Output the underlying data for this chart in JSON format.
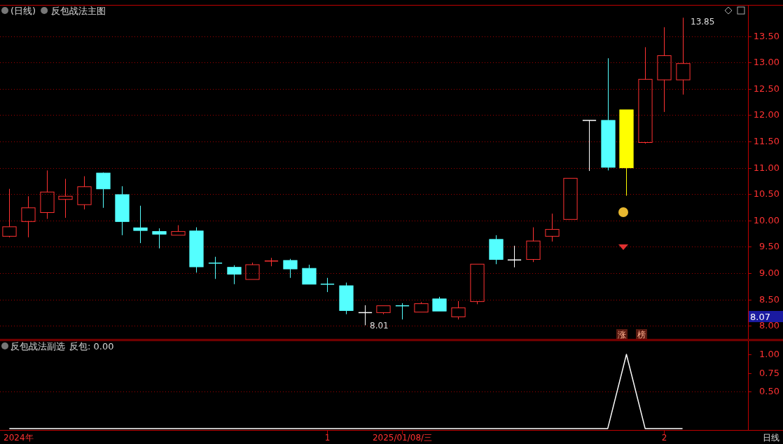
{
  "chart_data": [
    {
      "type": "candlestick",
      "title": "(日线)",
      "subtitle": "反包战法主图",
      "color": "#ff3232",
      "categories": [
        null,
        null,
        null,
        null,
        null,
        null,
        null,
        null,
        null,
        null,
        null,
        null,
        null,
        null,
        null,
        null,
        null,
        null,
        null,
        null,
        null,
        null,
        null,
        null,
        null,
        null,
        null,
        null,
        null,
        null,
        null,
        null,
        null,
        null,
        null,
        null,
        null,
        null,
        null,
        null
      ],
      "ohlc": [
        [
          9.7,
          10.6,
          9.68,
          9.88
        ],
        [
          9.98,
          10.46,
          9.68,
          10.24
        ],
        [
          10.15,
          10.95,
          10.03,
          10.54
        ],
        [
          10.4,
          10.79,
          10.05,
          10.46
        ],
        [
          10.3,
          10.84,
          10.21,
          10.64
        ],
        [
          10.9,
          10.91,
          10.24,
          10.6
        ],
        [
          10.49,
          10.65,
          9.72,
          9.98
        ],
        [
          9.86,
          10.28,
          9.57,
          9.81
        ],
        [
          9.79,
          9.85,
          9.47,
          9.74
        ],
        [
          9.72,
          9.91,
          9.72,
          9.79
        ],
        [
          9.8,
          9.87,
          9.01,
          9.12
        ],
        [
          9.19,
          9.31,
          8.89,
          9.18
        ],
        [
          9.11,
          9.15,
          8.79,
          8.98
        ],
        [
          8.88,
          9.2,
          8.88,
          9.16
        ],
        [
          9.22,
          9.29,
          9.13,
          9.23
        ],
        [
          9.24,
          9.27,
          8.91,
          9.08
        ],
        [
          9.09,
          9.16,
          8.79,
          8.79
        ],
        [
          8.79,
          8.91,
          8.64,
          8.78
        ],
        [
          8.76,
          8.82,
          8.22,
          8.29
        ],
        [
          8.25,
          8.39,
          8.01,
          8.25
        ],
        [
          8.25,
          8.38,
          8.22,
          8.38
        ],
        [
          8.38,
          8.43,
          8.12,
          8.37
        ],
        [
          8.26,
          8.45,
          8.26,
          8.42
        ],
        [
          8.51,
          8.55,
          8.28,
          8.28
        ],
        [
          8.17,
          8.47,
          8.12,
          8.34
        ],
        [
          8.46,
          9.17,
          8.41,
          9.17
        ],
        [
          9.64,
          9.72,
          9.17,
          9.26
        ],
        [
          9.25,
          9.52,
          9.11,
          9.25
        ],
        [
          9.26,
          9.87,
          9.21,
          9.61
        ],
        [
          9.7,
          10.13,
          9.6,
          9.83
        ],
        [
          10.02,
          10.8,
          10.02,
          10.8
        ],
        [
          11.9,
          11.9,
          10.94,
          11.9
        ],
        [
          11.9,
          13.08,
          10.95,
          11.01
        ],
        [
          11.0,
          12.1,
          10.47,
          12.1
        ],
        [
          11.48,
          13.29,
          11.46,
          12.68
        ],
        [
          12.67,
          13.67,
          12.06,
          13.13
        ],
        [
          12.67,
          13.85,
          12.39,
          12.98
        ],
        null,
        null,
        null
      ],
      "colors": [
        "#ff3232",
        "#ff3232",
        "#ff3232",
        "#ff3232",
        "#ff3232",
        "#54ffff",
        "#54ffff",
        "#54ffff",
        "#54ffff",
        "#ff3232",
        "#54ffff",
        "#54ffff",
        "#54ffff",
        "#ff3232",
        "#ff3232",
        "#54ffff",
        "#54ffff",
        "#54ffff",
        "#54ffff",
        "#ffffff",
        "#ff3232",
        "#54ffff",
        "#ff3232",
        "#54ffff",
        "#ff3232",
        "#ff3232",
        "#54ffff",
        "#ffffff",
        "#ff3232",
        "#ff3232",
        "#ff3232",
        "#ffffff",
        "#54ffff",
        "#ffff00",
        "#ff3232",
        "#ff3232",
        "#ff3232",
        null,
        null,
        null
      ],
      "ylim": [
        7.75,
        14.08
      ],
      "yticks": [
        {
          "value": 8,
          "label": "8.00"
        },
        {
          "value": 8.5,
          "label": "8.50"
        },
        {
          "value": 9,
          "label": "9.00"
        },
        {
          "value": 9.5,
          "label": "9.50"
        },
        {
          "value": 10,
          "label": "10.00"
        },
        {
          "value": 10.5,
          "label": "10.50"
        },
        {
          "value": 11,
          "label": "11.00"
        },
        {
          "value": 11.5,
          "label": "11.50"
        },
        {
          "value": 12,
          "label": "12.00"
        },
        {
          "value": 12.5,
          "label": "12.50"
        },
        {
          "value": 13,
          "label": "13.00"
        },
        {
          "value": 13.5,
          "label": "13.50"
        }
      ],
      "grid": "y",
      "tick_labels": "y",
      "annotations": [
        "13.85",
        "8.01",
        "8.07",
        "涨",
        "榜"
      ]
    },
    {
      "type": "line",
      "title": "反包战法副选",
      "subtitle": "反包: 0.00",
      "categories": [
        null,
        null,
        null,
        null,
        null,
        null,
        null,
        null,
        null,
        null,
        null,
        null,
        null,
        null,
        null,
        null,
        null,
        "1",
        null,
        null,
        null,
        "2025/01/08/三",
        null,
        null,
        null,
        null,
        null,
        null,
        null,
        null,
        null,
        null,
        null,
        null,
        null,
        "2",
        null,
        null,
        null,
        null
      ],
      "series": [
        {
          "color": "#ffffff",
          "values": [
            0,
            0,
            0,
            0,
            0,
            0,
            0,
            0,
            0,
            0,
            0,
            0,
            0,
            0,
            0,
            0,
            0,
            0,
            0,
            0,
            0,
            0,
            0,
            0,
            0,
            0,
            0,
            0,
            0,
            0,
            0,
            0,
            0,
            1,
            0,
            0,
            0,
            null,
            null,
            null
          ]
        }
      ],
      "ylim": [
        -0.02,
        1.18
      ],
      "yticks": [
        {
          "value": 0.5,
          "label": "0.50"
        },
        {
          "value": 0.75,
          "label": "0.75"
        },
        {
          "value": 1,
          "label": "1.00"
        }
      ],
      "ref_lines": [
        {
          "axis": "y",
          "value": 0.5,
          "color": "#a00000",
          "line_style": "dotted"
        }
      ],
      "annotations": [
        "2024年",
        "日线"
      ]
    }
  ]
}
